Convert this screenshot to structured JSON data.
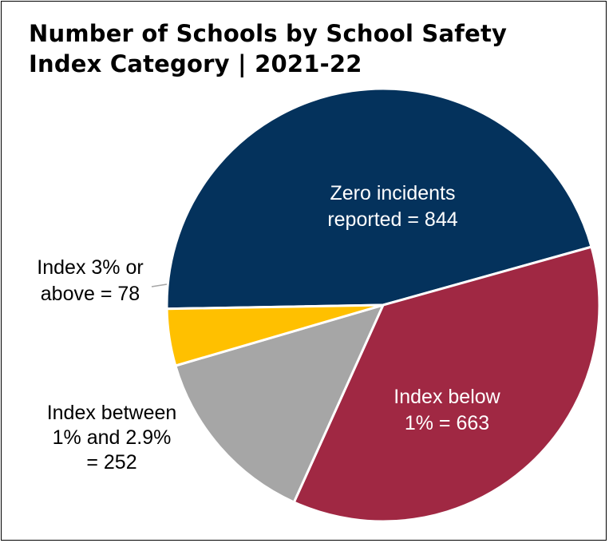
{
  "chart_data": {
    "type": "pie",
    "title": [
      "Number of Schools by School Safety",
      "Index Category | 2021-22"
    ],
    "slices": [
      {
        "label": "Zero incidents reported",
        "value": 844,
        "color": "#04325C",
        "label_lines": [
          "Zero incidents",
          "reported = 844"
        ],
        "text_color": "#ffffff"
      },
      {
        "label": "Index below 1%",
        "value": 663,
        "color": "#A02843",
        "label_lines": [
          "Index below",
          "1% = 663"
        ],
        "text_color": "#ffffff"
      },
      {
        "label": "Index between 1% and 2.9%",
        "value": 252,
        "color": "#A6A6A6",
        "label_lines": [
          "Index between",
          "1% and 2.9%",
          "= 252"
        ],
        "text_color": "#000000"
      },
      {
        "label": "Index 3% or above",
        "value": 78,
        "color": "#FFC000",
        "label_lines": [
          "Index 3% or",
          "above = 78"
        ],
        "text_color": "#000000"
      }
    ]
  }
}
